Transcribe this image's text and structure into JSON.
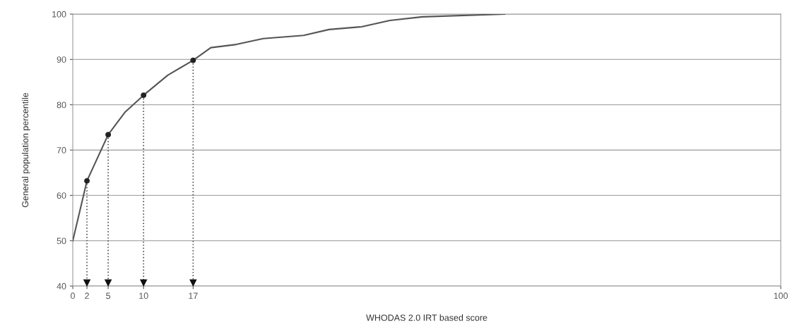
{
  "chart_data": {
    "type": "line",
    "xlabel": "WHODAS 2.0 IRT based score",
    "ylabel": "General population percentile",
    "xlim": [
      0,
      100
    ],
    "xticks": [
      0,
      2,
      5,
      10,
      17,
      100
    ],
    "ylim": [
      40,
      100
    ],
    "yticks": [
      40,
      50,
      60,
      70,
      80,
      90,
      100
    ],
    "grid": "y",
    "series": [
      {
        "type": "line",
        "color": "#555555",
        "marker": "none",
        "x": [
          0,
          2,
          5,
          7.4,
          10,
          13.4,
          17,
          19.5,
          23.1,
          26.9,
          32.6,
          36.2,
          40.8,
          44.8,
          49.4,
          61
        ],
        "values": [
          50,
          63.2,
          73.4,
          78.4,
          82.1,
          86.5,
          89.8,
          92.6,
          93.3,
          94.6,
          95.3,
          96.6,
          97.2,
          98.6,
          99.4,
          100
        ]
      },
      {
        "type": "scatter",
        "color": "#222222",
        "marker": "circle",
        "x": [
          2,
          5,
          10,
          17
        ],
        "values": [
          63.2,
          73.4,
          82.1,
          89.8
        ]
      }
    ],
    "ref_lines": [
      {
        "axis": "x",
        "value": 2,
        "color": "#555555",
        "line_style": "dotted"
      },
      {
        "axis": "x",
        "value": 5,
        "color": "#555555",
        "line_style": "dotted"
      },
      {
        "axis": "x",
        "value": 10,
        "color": "#555555",
        "line_style": "dotted"
      },
      {
        "axis": "x",
        "value": 17,
        "color": "#555555",
        "line_style": "dotted"
      }
    ]
  }
}
